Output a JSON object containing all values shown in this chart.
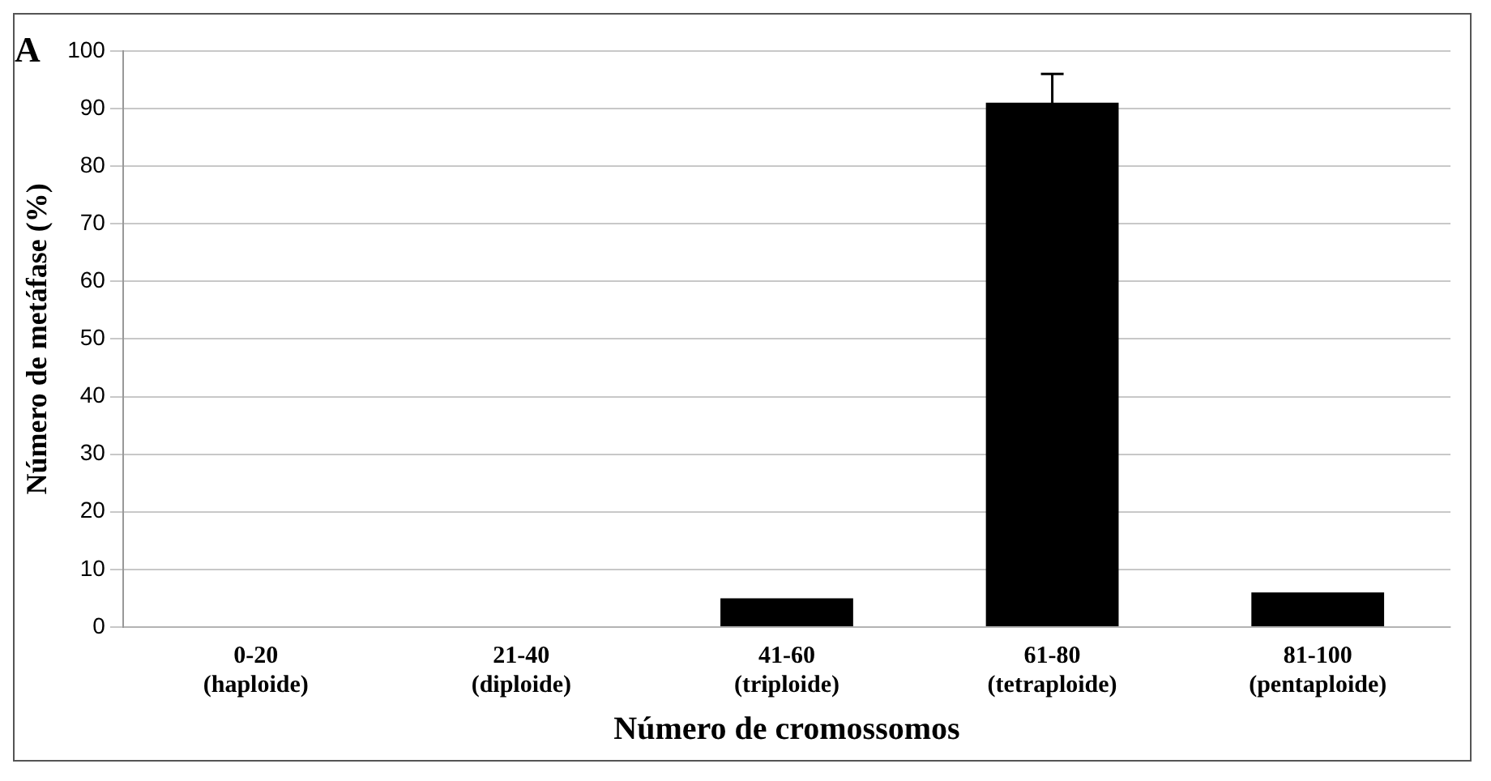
{
  "chart_data": {
    "type": "bar",
    "title": "A",
    "xlabel": "Número de cromossomos",
    "ylabel": "Número de metáfase (%)",
    "categories": [
      "0-20\n(haploide)",
      "21-40\n(diploide)",
      "41-60\n(triploide)",
      "61-80\n(tetraploide)",
      "81-100\n(pentaploide)"
    ],
    "values": [
      0,
      0,
      5,
      91,
      6
    ],
    "errors": [
      null,
      null,
      null,
      5,
      null
    ],
    "color": "#000000",
    "ylim": [
      0,
      100
    ],
    "yticks": [
      0,
      10,
      20,
      30,
      40,
      50,
      60,
      70,
      80,
      90,
      100
    ],
    "grid": "y",
    "legend": false
  }
}
